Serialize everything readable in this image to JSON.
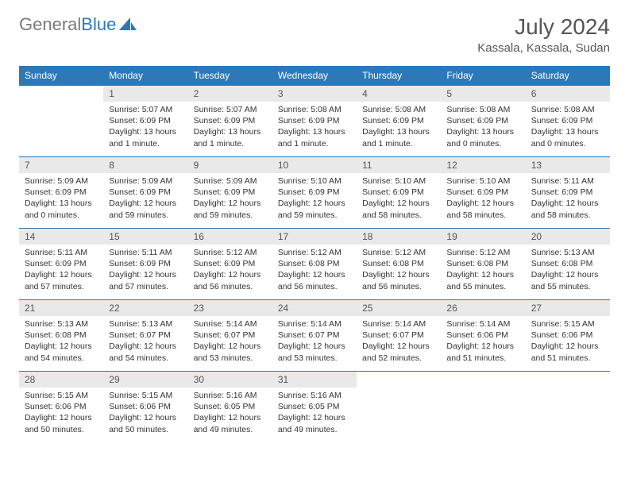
{
  "brand": {
    "part1": "General",
    "part2": "Blue"
  },
  "title": "July 2024",
  "location": "Kassala, Kassala, Sudan",
  "colors": {
    "header_bg": "#2d79b7",
    "header_text": "#ffffff",
    "daynum_bg": "#e9e9e9",
    "border": "#2d79b7",
    "text": "#333333"
  },
  "weekdays": [
    "Sunday",
    "Monday",
    "Tuesday",
    "Wednesday",
    "Thursday",
    "Friday",
    "Saturday"
  ],
  "weeks": [
    [
      null,
      {
        "n": "1",
        "sr": "5:07 AM",
        "ss": "6:09 PM",
        "dl": "13 hours and 1 minute."
      },
      {
        "n": "2",
        "sr": "5:07 AM",
        "ss": "6:09 PM",
        "dl": "13 hours and 1 minute."
      },
      {
        "n": "3",
        "sr": "5:08 AM",
        "ss": "6:09 PM",
        "dl": "13 hours and 1 minute."
      },
      {
        "n": "4",
        "sr": "5:08 AM",
        "ss": "6:09 PM",
        "dl": "13 hours and 1 minute."
      },
      {
        "n": "5",
        "sr": "5:08 AM",
        "ss": "6:09 PM",
        "dl": "13 hours and 0 minutes."
      },
      {
        "n": "6",
        "sr": "5:08 AM",
        "ss": "6:09 PM",
        "dl": "13 hours and 0 minutes."
      }
    ],
    [
      {
        "n": "7",
        "sr": "5:09 AM",
        "ss": "6:09 PM",
        "dl": "13 hours and 0 minutes."
      },
      {
        "n": "8",
        "sr": "5:09 AM",
        "ss": "6:09 PM",
        "dl": "12 hours and 59 minutes."
      },
      {
        "n": "9",
        "sr": "5:09 AM",
        "ss": "6:09 PM",
        "dl": "12 hours and 59 minutes."
      },
      {
        "n": "10",
        "sr": "5:10 AM",
        "ss": "6:09 PM",
        "dl": "12 hours and 59 minutes."
      },
      {
        "n": "11",
        "sr": "5:10 AM",
        "ss": "6:09 PM",
        "dl": "12 hours and 58 minutes."
      },
      {
        "n": "12",
        "sr": "5:10 AM",
        "ss": "6:09 PM",
        "dl": "12 hours and 58 minutes."
      },
      {
        "n": "13",
        "sr": "5:11 AM",
        "ss": "6:09 PM",
        "dl": "12 hours and 58 minutes."
      }
    ],
    [
      {
        "n": "14",
        "sr": "5:11 AM",
        "ss": "6:09 PM",
        "dl": "12 hours and 57 minutes."
      },
      {
        "n": "15",
        "sr": "5:11 AM",
        "ss": "6:09 PM",
        "dl": "12 hours and 57 minutes."
      },
      {
        "n": "16",
        "sr": "5:12 AM",
        "ss": "6:09 PM",
        "dl": "12 hours and 56 minutes."
      },
      {
        "n": "17",
        "sr": "5:12 AM",
        "ss": "6:08 PM",
        "dl": "12 hours and 56 minutes."
      },
      {
        "n": "18",
        "sr": "5:12 AM",
        "ss": "6:08 PM",
        "dl": "12 hours and 56 minutes."
      },
      {
        "n": "19",
        "sr": "5:12 AM",
        "ss": "6:08 PM",
        "dl": "12 hours and 55 minutes."
      },
      {
        "n": "20",
        "sr": "5:13 AM",
        "ss": "6:08 PM",
        "dl": "12 hours and 55 minutes."
      }
    ],
    [
      {
        "n": "21",
        "sr": "5:13 AM",
        "ss": "6:08 PM",
        "dl": "12 hours and 54 minutes."
      },
      {
        "n": "22",
        "sr": "5:13 AM",
        "ss": "6:07 PM",
        "dl": "12 hours and 54 minutes."
      },
      {
        "n": "23",
        "sr": "5:14 AM",
        "ss": "6:07 PM",
        "dl": "12 hours and 53 minutes."
      },
      {
        "n": "24",
        "sr": "5:14 AM",
        "ss": "6:07 PM",
        "dl": "12 hours and 53 minutes."
      },
      {
        "n": "25",
        "sr": "5:14 AM",
        "ss": "6:07 PM",
        "dl": "12 hours and 52 minutes."
      },
      {
        "n": "26",
        "sr": "5:14 AM",
        "ss": "6:06 PM",
        "dl": "12 hours and 51 minutes."
      },
      {
        "n": "27",
        "sr": "5:15 AM",
        "ss": "6:06 PM",
        "dl": "12 hours and 51 minutes."
      }
    ],
    [
      {
        "n": "28",
        "sr": "5:15 AM",
        "ss": "6:06 PM",
        "dl": "12 hours and 50 minutes."
      },
      {
        "n": "29",
        "sr": "5:15 AM",
        "ss": "6:06 PM",
        "dl": "12 hours and 50 minutes."
      },
      {
        "n": "30",
        "sr": "5:16 AM",
        "ss": "6:05 PM",
        "dl": "12 hours and 49 minutes."
      },
      {
        "n": "31",
        "sr": "5:16 AM",
        "ss": "6:05 PM",
        "dl": "12 hours and 49 minutes."
      },
      null,
      null,
      null
    ]
  ],
  "labels": {
    "sunrise": "Sunrise:",
    "sunset": "Sunset:",
    "daylight": "Daylight:"
  }
}
